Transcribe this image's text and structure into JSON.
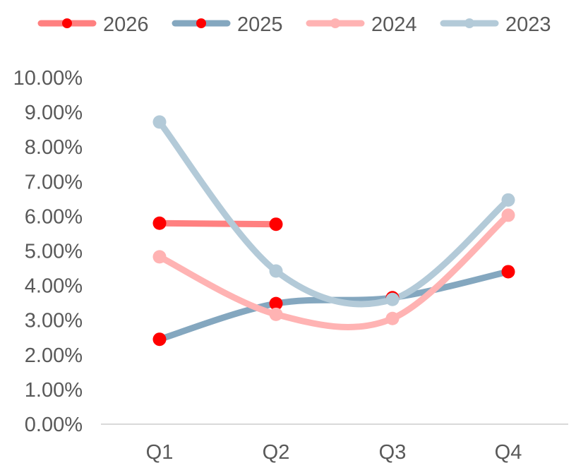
{
  "chart_data": {
    "type": "line",
    "smooth": true,
    "categories": [
      "Q1",
      "Q2",
      "Q3",
      "Q4"
    ],
    "ylim": [
      0,
      10
    ],
    "y_ticks": [
      0,
      1,
      2,
      3,
      4,
      5,
      6,
      7,
      8,
      9,
      10
    ],
    "y_tick_labels": [
      "0.00%",
      "1.00%",
      "2.00%",
      "3.00%",
      "4.00%",
      "5.00%",
      "6.00%",
      "7.00%",
      "8.00%",
      "9.00%",
      "10.00%"
    ],
    "grid": false,
    "legend_position": "top",
    "series": [
      {
        "name": "2026",
        "line_color": "#ff8080",
        "marker_color": "#ff0000",
        "values": [
          5.8,
          5.77,
          null,
          null
        ]
      },
      {
        "name": "2025",
        "line_color": "#84a7bf",
        "marker_color": "#ff0000",
        "values": [
          2.45,
          3.48,
          3.65,
          4.4
        ]
      },
      {
        "name": "2024",
        "line_color": "#ffb3b3",
        "marker_color": "#ffb3b3",
        "values": [
          4.83,
          3.17,
          3.05,
          6.03
        ]
      },
      {
        "name": "2023",
        "line_color": "#b3cad8",
        "marker_color": "#b3cad8",
        "values": [
          8.72,
          4.42,
          3.6,
          6.47
        ]
      }
    ]
  }
}
